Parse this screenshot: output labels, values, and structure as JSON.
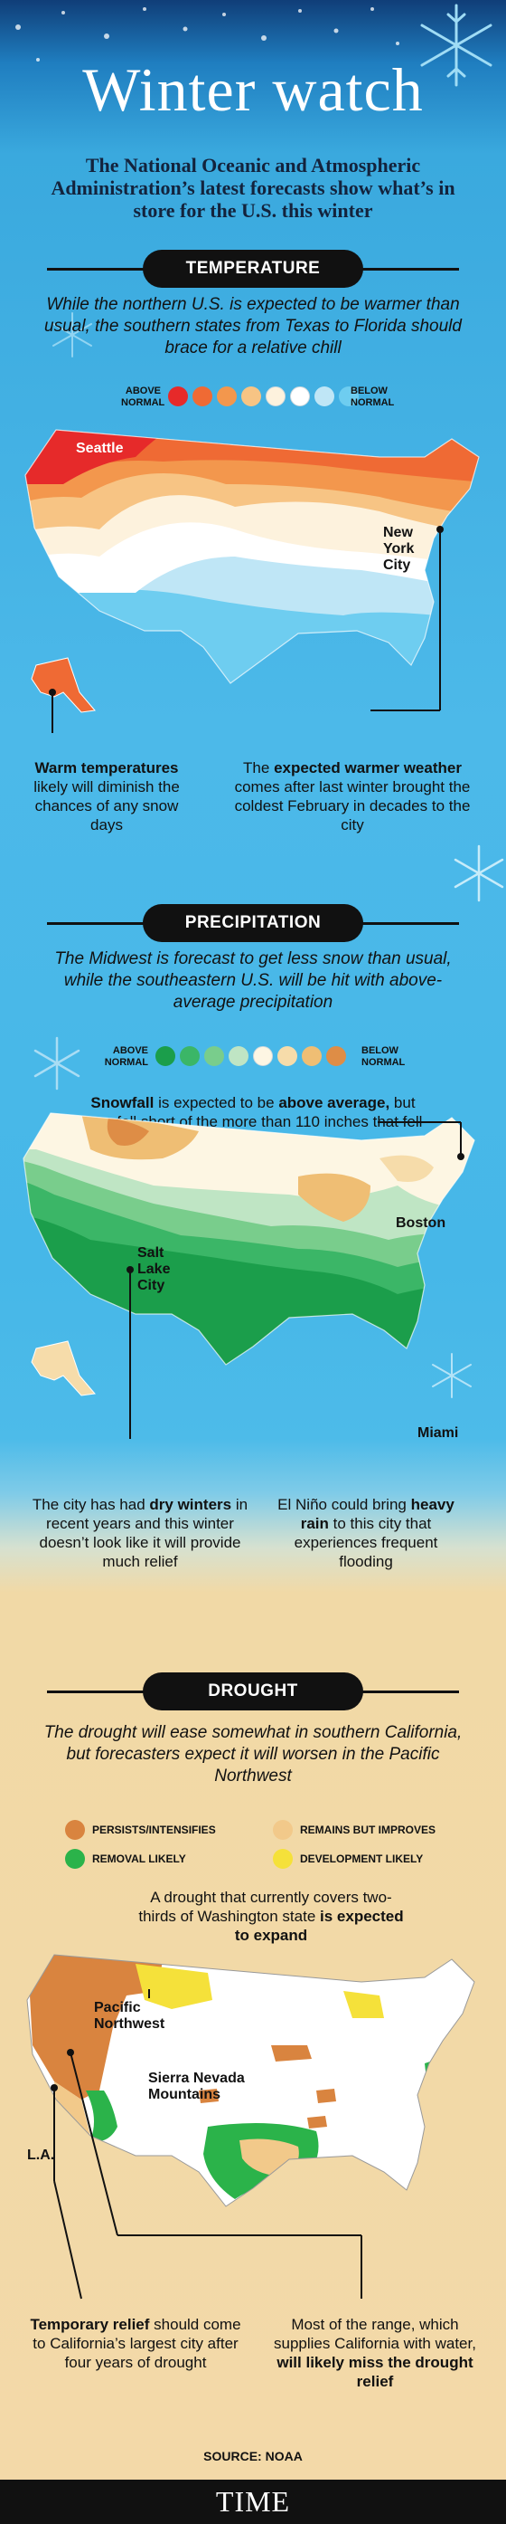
{
  "title": "Winter watch",
  "intro": "The National Oceanic and Atmospheric Administration’s latest forecasts show what’s in store for the U.S. this winter",
  "temperature": {
    "header": "TEMPERATURE",
    "lede": "While the northern U.S. is expected to be warmer than usual, the southern states from Texas to Florida should brace for a relative chill",
    "scale_left": "ABOVE NORMAL",
    "scale_right": "BELOW NORMAL",
    "scale_colors": [
      "#e62a2a",
      "#ef6a34",
      "#f3974d",
      "#f7c484",
      "#fdf2dd",
      "#ffffff",
      "#bfe6f6",
      "#6ecdf0"
    ],
    "cities": {
      "seattle": "Seattle",
      "new_york": "New York City"
    },
    "callout_left_pre": "Warm temperatures",
    "callout_left_post": "likely will diminish the chances of any snow days",
    "callout_right_pre": "The",
    "callout_right_bold": "expected warmer weather",
    "callout_right_post": "comes after last winter brought the coldest February in decades to the city"
  },
  "precipitation": {
    "header": "PRECIPITATION",
    "lede": "The Midwest is forecast to get less snow than usual, while the southeastern U.S. will be hit with above-average precipitation",
    "scale_left": "ABOVE NORMAL",
    "scale_right": "BELOW NORMAL",
    "scale_colors": [
      "#1b9e4b",
      "#3bb667",
      "#79cd8c",
      "#bfe5c4",
      "#fdf6e3",
      "#f6dcaa",
      "#efbe74",
      "#de8d46"
    ],
    "snowfall_bold1": "Snowfall",
    "snowfall_mid": "is expected to be",
    "snowfall_bold2": "above average,",
    "snowfall_post": "but may fall short of the more than 110 inches that fell last winter",
    "cities": {
      "boston": "Boston",
      "salt_lake": "Salt Lake City",
      "miami": "Miami"
    },
    "callout_left_pre": "The city has had",
    "callout_left_bold": "dry winters",
    "callout_left_post": "in recent years and this winter doesn’t look like it will provide much relief",
    "callout_right_pre": "El Niño could bring",
    "callout_right_bold": "heavy rain",
    "callout_right_post": "to this city that experiences frequent flooding"
  },
  "drought": {
    "header": "DROUGHT",
    "lede": "The drought will ease somewhat in southern California, but forecasters expect it will worsen in the Pacific Northwest",
    "legend": [
      {
        "label": "PERSISTS/INTENSIFIES",
        "color": "#d9843f"
      },
      {
        "label": "REMAINS BUT IMPROVES",
        "color": "#f2c98a"
      },
      {
        "label": "REMOVAL LIKELY",
        "color": "#2bb34a"
      },
      {
        "label": "DEVELOPMENT LIKELY",
        "color": "#f5e13a"
      }
    ],
    "top_callout_pre": "A drought that currently covers two-thirds of Washington state",
    "top_callout_bold": "is expected to expand",
    "places": {
      "pnw": "Pacific Northwest",
      "sierra": "Sierra Nevada Mountains",
      "la": "L.A."
    },
    "callout_left_bold": "Temporary relief",
    "callout_left_post": "should come to California’s largest city after four years of drought",
    "callout_right_pre": "Most of the range, which supplies California with water,",
    "callout_right_bold": "will likely miss the drought relief"
  },
  "source": "SOURCE: NOAA",
  "brand": "TIME"
}
